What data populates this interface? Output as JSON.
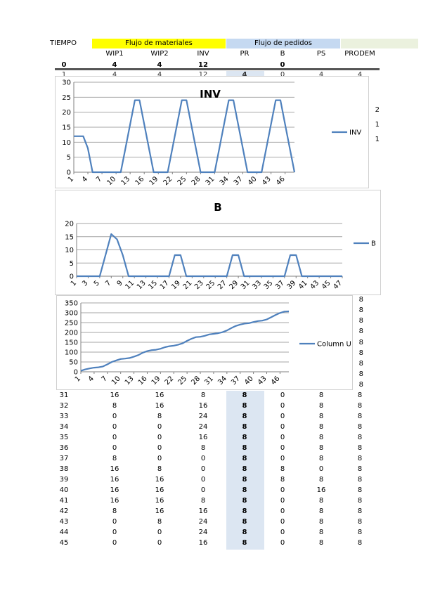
{
  "header": {
    "tiempo": "TIEMPO",
    "flujo_materiales": "Flujo de materiales",
    "flujo_pedidos": "Flujo de pedidos",
    "colors": {
      "materiales": "#ffff00",
      "pedidos": "#c5d9f1",
      "extra": "#ebf1de",
      "pr_column": "#dce6f2"
    }
  },
  "columns": [
    "WIP1",
    "WIP2",
    "INV",
    "PR",
    "B",
    "PS",
    "PRODEM"
  ],
  "row0": {
    "t": "0",
    "wip1": "4",
    "wip2": "4",
    "inv": "12",
    "b": "0"
  },
  "row1": {
    "t": "1",
    "wip1": "4",
    "wip2": "4",
    "inv": "12",
    "pr": "4",
    "b": "0",
    "ps": "4",
    "prodem": "4"
  },
  "side_values_inv": [
    "2",
    "1",
    "1"
  ],
  "side_values_col": [
    "8",
    "8",
    "8",
    "8",
    "8",
    "8",
    "8",
    "8",
    "8"
  ],
  "table_rows": [
    [
      "31",
      "16",
      "16",
      "8",
      "8",
      "0",
      "8",
      "8"
    ],
    [
      "32",
      "8",
      "16",
      "16",
      "8",
      "0",
      "8",
      "8"
    ],
    [
      "33",
      "0",
      "8",
      "24",
      "8",
      "0",
      "8",
      "8"
    ],
    [
      "34",
      "0",
      "0",
      "24",
      "8",
      "0",
      "8",
      "8"
    ],
    [
      "35",
      "0",
      "0",
      "16",
      "8",
      "0",
      "8",
      "8"
    ],
    [
      "36",
      "0",
      "0",
      "8",
      "8",
      "0",
      "8",
      "8"
    ],
    [
      "37",
      "8",
      "0",
      "0",
      "8",
      "0",
      "8",
      "8"
    ],
    [
      "38",
      "16",
      "8",
      "0",
      "8",
      "8",
      "0",
      "8"
    ],
    [
      "39",
      "16",
      "16",
      "0",
      "8",
      "8",
      "8",
      "8"
    ],
    [
      "40",
      "16",
      "16",
      "0",
      "8",
      "0",
      "16",
      "8"
    ],
    [
      "41",
      "16",
      "16",
      "8",
      "8",
      "0",
      "8",
      "8"
    ],
    [
      "42",
      "8",
      "16",
      "16",
      "8",
      "0",
      "8",
      "8"
    ],
    [
      "43",
      "0",
      "8",
      "24",
      "8",
      "0",
      "8",
      "8"
    ],
    [
      "44",
      "0",
      "0",
      "24",
      "8",
      "0",
      "8",
      "8"
    ],
    [
      "45",
      "0",
      "0",
      "16",
      "8",
      "0",
      "8",
      "8"
    ]
  ],
  "chart_data": [
    {
      "type": "line",
      "title": "INV",
      "series": [
        {
          "name": "INV",
          "color": "#4f81bd",
          "values": [
            12,
            12,
            12,
            8,
            0,
            0,
            0,
            0,
            0,
            0,
            0,
            8,
            16,
            24,
            24,
            16,
            8,
            0,
            0,
            0,
            0,
            8,
            16,
            24,
            24,
            16,
            8,
            0,
            0,
            0,
            0,
            8,
            16,
            24,
            24,
            16,
            8,
            0,
            0,
            0,
            0,
            8,
            16,
            24,
            24,
            16,
            8,
            0
          ]
        }
      ],
      "x_ticks": [
        "1",
        "4",
        "7",
        "10",
        "13",
        "16",
        "19",
        "22",
        "25",
        "28",
        "31",
        "34",
        "37",
        "40",
        "43",
        "46"
      ],
      "y_ticks": [
        "0",
        "5",
        "10",
        "15",
        "20",
        "25",
        "30"
      ],
      "ylim": [
        0,
        30
      ],
      "legend": "right",
      "grid": true
    },
    {
      "type": "line",
      "title": "B",
      "series": [
        {
          "name": "B",
          "color": "#4f81bd",
          "values": [
            0,
            0,
            0,
            0,
            0,
            8,
            16,
            14,
            8,
            0,
            0,
            0,
            0,
            0,
            0,
            0,
            0,
            8,
            8,
            0,
            0,
            0,
            0,
            0,
            0,
            0,
            0,
            8,
            8,
            0,
            0,
            0,
            0,
            0,
            0,
            0,
            0,
            8,
            8,
            0,
            0,
            0,
            0,
            0,
            0,
            0,
            0
          ]
        }
      ],
      "x_ticks": [
        "1",
        "3",
        "5",
        "7",
        "9",
        "11",
        "13",
        "15",
        "17",
        "19",
        "21",
        "23",
        "25",
        "27",
        "29",
        "31",
        "33",
        "35",
        "37",
        "39",
        "41",
        "43",
        "45",
        "47"
      ],
      "y_ticks": [
        "0",
        "5",
        "10",
        "15",
        "20"
      ],
      "ylim": [
        0,
        20
      ],
      "legend": "right",
      "grid": true
    },
    {
      "type": "line",
      "title": "",
      "series": [
        {
          "name": "Column U",
          "color": "#4f81bd",
          "values": [
            5,
            12,
            17,
            21,
            23,
            27,
            38,
            50,
            58,
            65,
            67,
            70,
            77,
            85,
            97,
            105,
            110,
            112,
            117,
            125,
            130,
            133,
            138,
            145,
            157,
            168,
            176,
            178,
            183,
            190,
            193,
            196,
            201,
            210,
            222,
            233,
            240,
            245,
            247,
            253,
            258,
            260,
            266,
            277,
            289,
            299,
            306,
            307
          ]
        }
      ],
      "x_ticks": [
        "1",
        "4",
        "7",
        "10",
        "13",
        "16",
        "19",
        "22",
        "25",
        "28",
        "31",
        "34",
        "37",
        "40",
        "43",
        "46"
      ],
      "y_ticks": [
        "0",
        "50",
        "100",
        "150",
        "200",
        "250",
        "300",
        "350"
      ],
      "ylim": [
        0,
        350
      ],
      "legend": "right",
      "grid": true
    }
  ]
}
